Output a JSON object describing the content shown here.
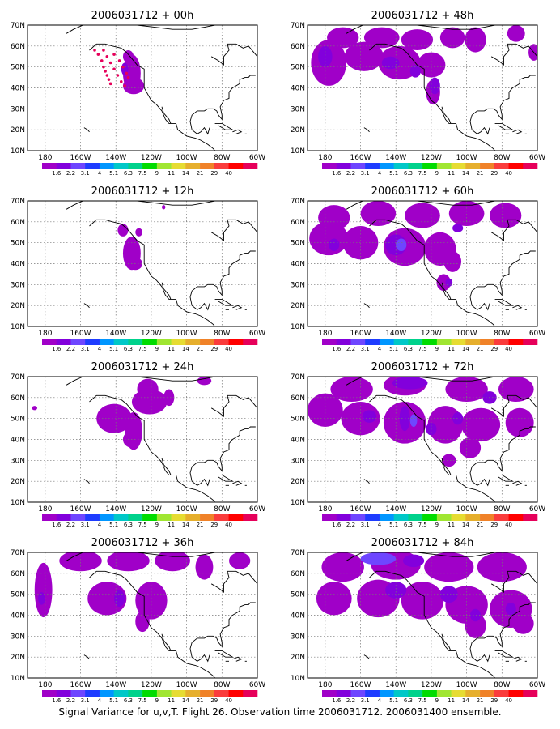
{
  "caption": "Signal Variance for u,v,T. Flight 26. Observation time 2006031712. 2006031400 ensemble.",
  "map": {
    "lon_ticks": [
      "180",
      "160W",
      "140W",
      "120W",
      "100W",
      "80W",
      "60W"
    ],
    "lat_ticks": [
      "70N",
      "60N",
      "50N",
      "40N",
      "30N",
      "20N",
      "10N"
    ],
    "lon_range": [
      -190,
      -60
    ],
    "lat_range": [
      10,
      70
    ]
  },
  "colorbar": {
    "labels": [
      "1.6",
      "2.2",
      "3.1",
      "4",
      "5.1",
      "6.3",
      "7.5",
      "9",
      "11",
      "14",
      "21",
      "29",
      "40"
    ],
    "colors": [
      "#a000c8",
      "#8200dc",
      "#6e46ff",
      "#1e3cff",
      "#0096ff",
      "#00c8c8",
      "#00d28c",
      "#00dc00",
      "#a0e632",
      "#e6dc32",
      "#e6af2d",
      "#f08228",
      "#fa3c3c",
      "#ff0000",
      "#e6005a"
    ]
  },
  "panels": [
    {
      "title": "2006031712 + 00h",
      "lead_hours": 0
    },
    {
      "title": "2006031712 + 48h",
      "lead_hours": 48
    },
    {
      "title": "2006031712 + 12h",
      "lead_hours": 12
    },
    {
      "title": "2006031712 + 60h",
      "lead_hours": 60
    },
    {
      "title": "2006031712 + 24h",
      "lead_hours": 24
    },
    {
      "title": "2006031712 + 72h",
      "lead_hours": 72
    },
    {
      "title": "2006031712 + 36h",
      "lead_hours": 36
    },
    {
      "title": "2006031712 + 84h",
      "lead_hours": 84
    }
  ],
  "colors": {
    "variance_low": "#a000c8",
    "variance_mid": "#6e46ff",
    "variance_high": "#1e3cff",
    "flight_track": "#e6005a"
  }
}
